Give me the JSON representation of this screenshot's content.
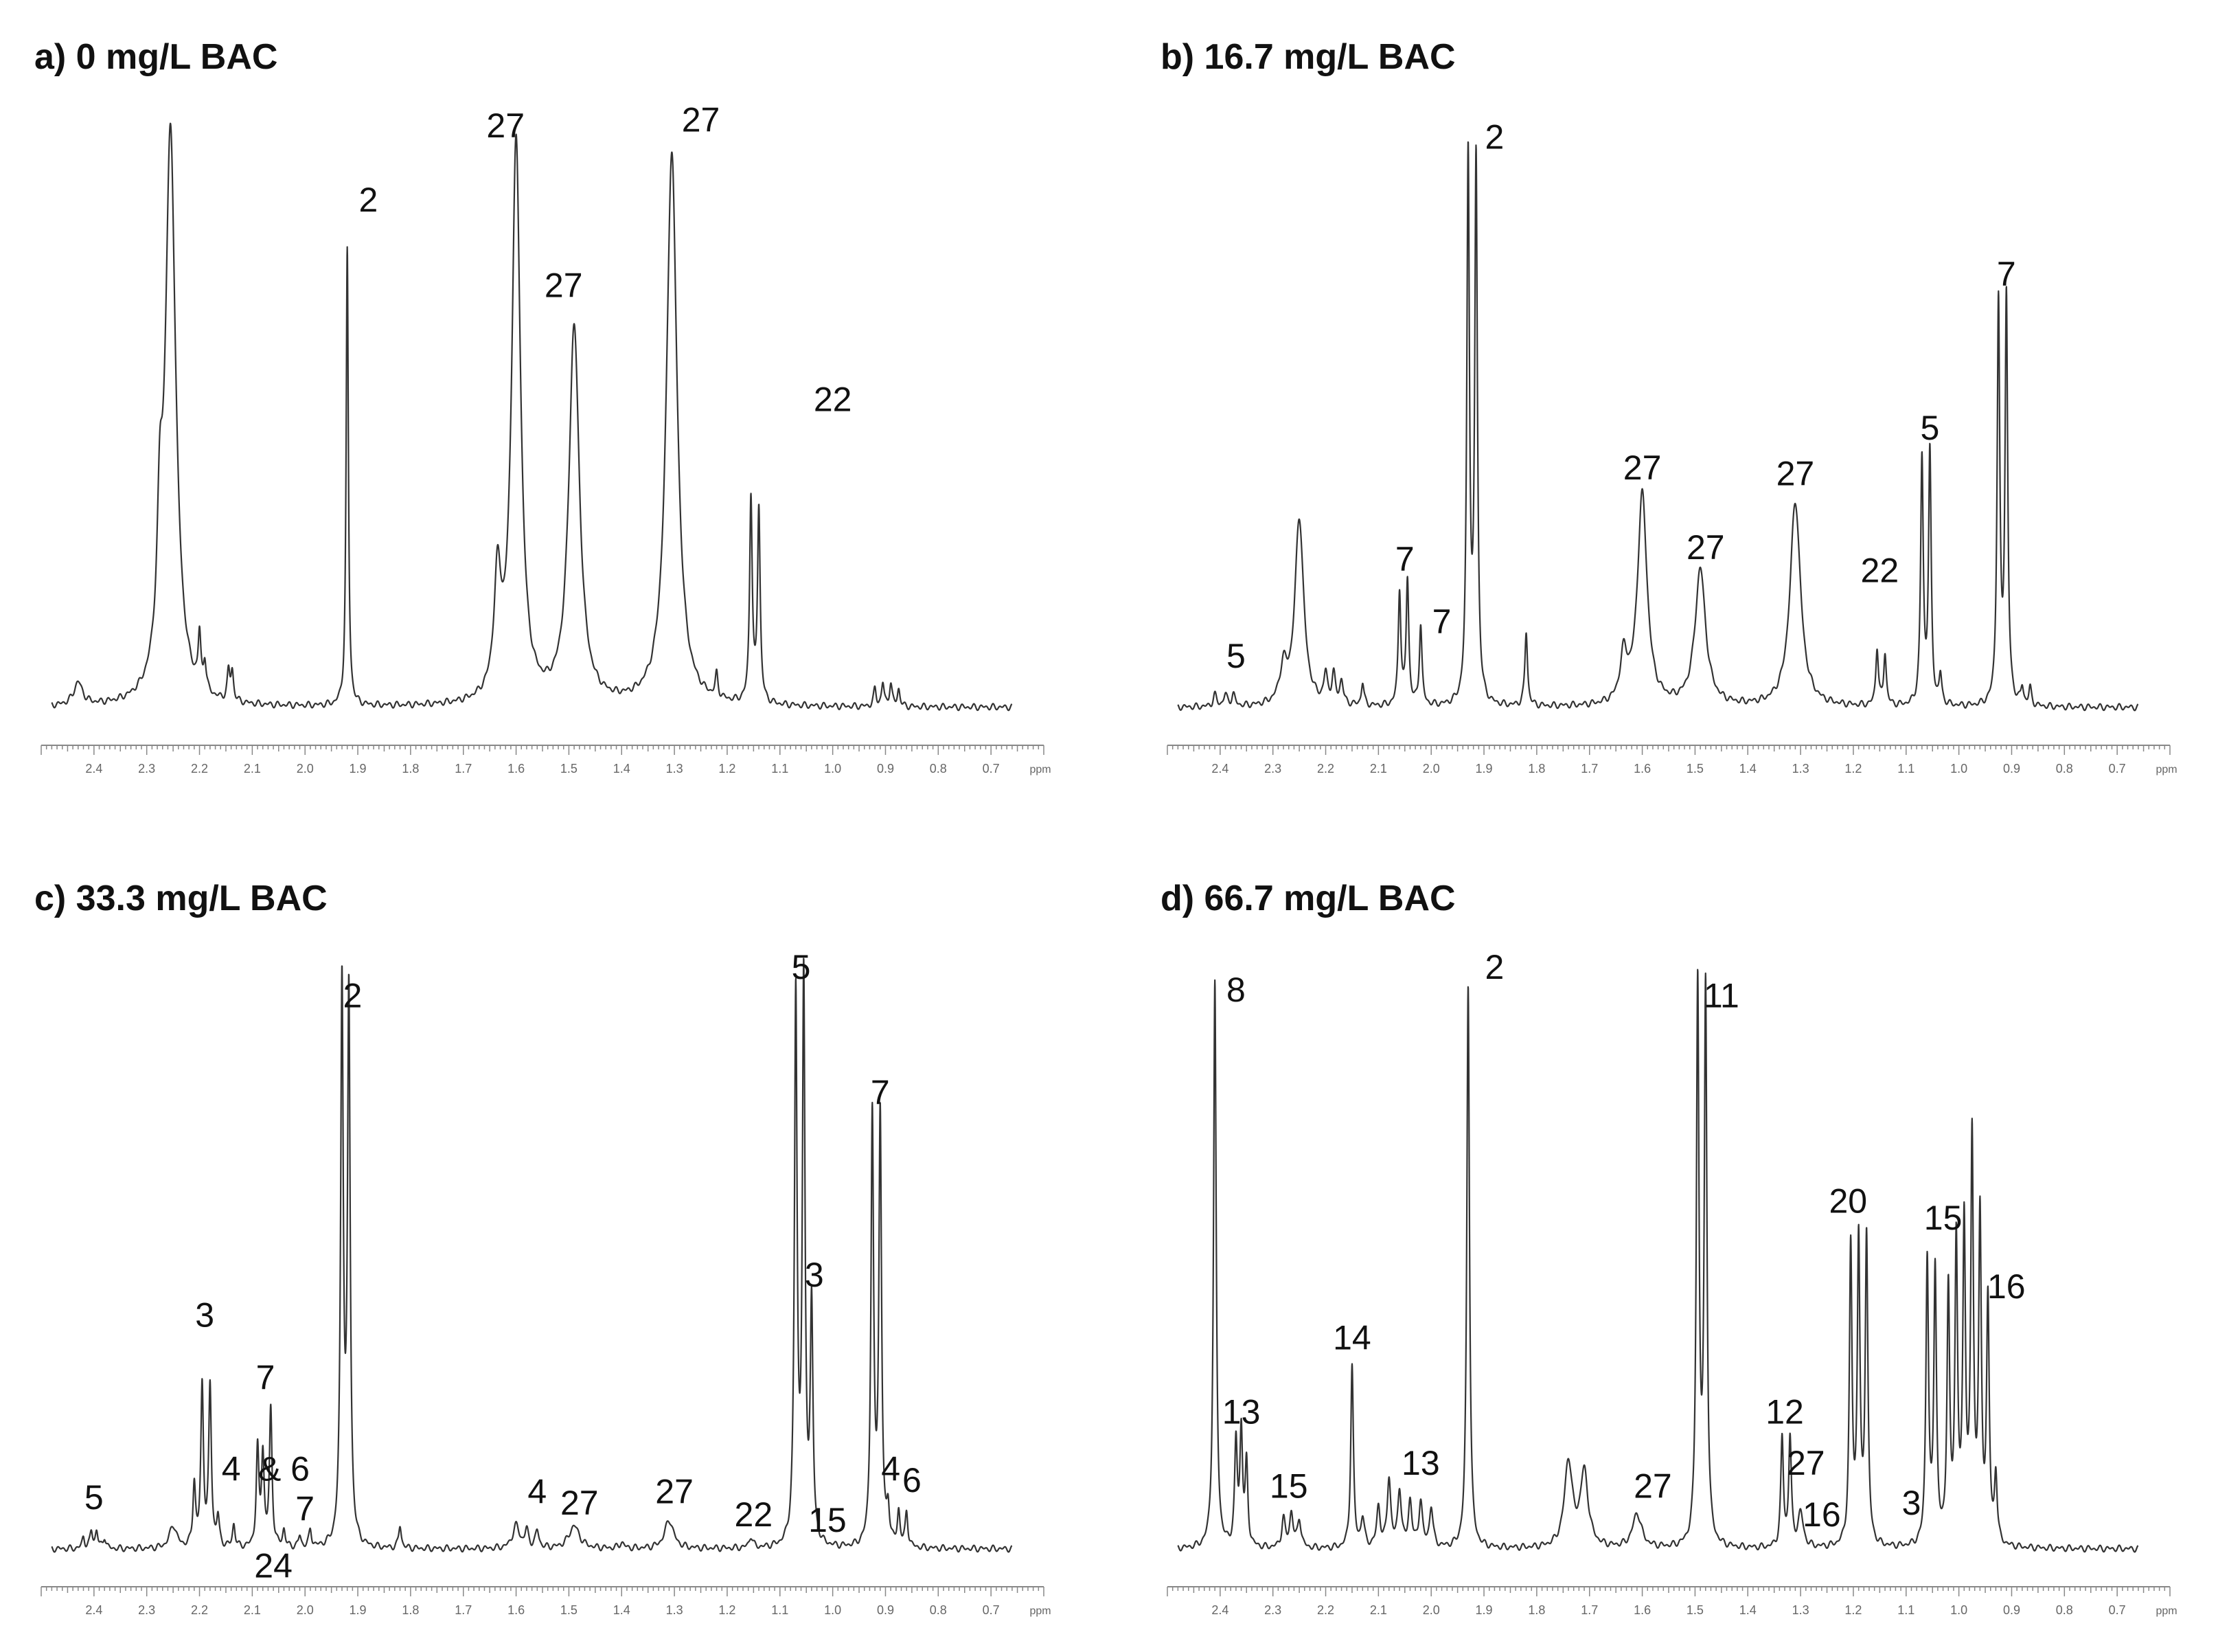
{
  "chart_data": [
    {
      "type": "line",
      "title": "a) 0 mg/L BAC",
      "xunit": "ppm",
      "xlim": [
        2.5,
        0.6
      ],
      "xticks": [
        "2.4",
        "2.3",
        "2.2",
        "2.1",
        "2.0",
        "1.9",
        "1.8",
        "1.7",
        "1.6",
        "1.5",
        "1.4",
        "1.3",
        "1.2",
        "1.1",
        "1.0",
        "0.9",
        "0.8",
        "0.7"
      ],
      "peaks": [
        {
          "x": 2.43,
          "y": 4,
          "w": 0.01
        },
        {
          "x": 2.275,
          "y": 22,
          "w": 0.006
        },
        {
          "x": 2.255,
          "y": 100,
          "w": 0.012
        },
        {
          "x": 2.2,
          "y": 9,
          "w": 0.003
        },
        {
          "x": 2.19,
          "y": 5,
          "w": 0.003
        },
        {
          "x": 2.145,
          "y": 5,
          "w": 0.003
        },
        {
          "x": 2.138,
          "y": 5,
          "w": 0.003
        },
        {
          "x": 1.92,
          "y": 80,
          "w": 0.0025
        },
        {
          "x": 1.635,
          "y": 20,
          "w": 0.008
        },
        {
          "x": 1.6,
          "y": 98,
          "w": 0.01
        },
        {
          "x": 1.49,
          "y": 66,
          "w": 0.012
        },
        {
          "x": 1.305,
          "y": 97,
          "w": 0.012
        },
        {
          "x": 1.22,
          "y": 4,
          "w": 0.003
        },
        {
          "x": 1.155,
          "y": 36,
          "w": 0.003
        },
        {
          "x": 1.14,
          "y": 34,
          "w": 0.003
        },
        {
          "x": 0.92,
          "y": 3,
          "w": 0.003
        },
        {
          "x": 0.905,
          "y": 4,
          "w": 0.003
        },
        {
          "x": 0.89,
          "y": 4,
          "w": 0.003
        },
        {
          "x": 0.875,
          "y": 3,
          "w": 0.003
        }
      ],
      "labels": [
        {
          "text": "2",
          "x": 1.88,
          "y": 87
        },
        {
          "text": "27",
          "x": 1.62,
          "y": 100
        },
        {
          "text": "27",
          "x": 1.51,
          "y": 72
        },
        {
          "text": "27",
          "x": 1.25,
          "y": 101
        },
        {
          "text": "22",
          "x": 1.0,
          "y": 52
        }
      ]
    },
    {
      "type": "line",
      "title": "b) 16.7 mg/L BAC",
      "xunit": "ppm",
      "xlim": [
        2.5,
        0.6
      ],
      "xticks": [
        "2.4",
        "2.3",
        "2.2",
        "2.1",
        "2.0",
        "1.9",
        "1.8",
        "1.7",
        "1.6",
        "1.5",
        "1.4",
        "1.3",
        "1.2",
        "1.1",
        "1.0",
        "0.9",
        "0.8",
        "0.7"
      ],
      "peaks": [
        {
          "x": 2.41,
          "y": 2,
          "w": 0.004
        },
        {
          "x": 2.39,
          "y": 2,
          "w": 0.004
        },
        {
          "x": 2.375,
          "y": 2,
          "w": 0.004
        },
        {
          "x": 2.28,
          "y": 6,
          "w": 0.008
        },
        {
          "x": 2.25,
          "y": 33,
          "w": 0.01
        },
        {
          "x": 2.2,
          "y": 5,
          "w": 0.004
        },
        {
          "x": 2.185,
          "y": 5,
          "w": 0.004
        },
        {
          "x": 2.17,
          "y": 4,
          "w": 0.004
        },
        {
          "x": 2.13,
          "y": 4,
          "w": 0.003
        },
        {
          "x": 2.06,
          "y": 20,
          "w": 0.003
        },
        {
          "x": 2.045,
          "y": 22,
          "w": 0.003
        },
        {
          "x": 2.02,
          "y": 14,
          "w": 0.003
        },
        {
          "x": 1.93,
          "y": 96,
          "w": 0.003
        },
        {
          "x": 1.915,
          "y": 95,
          "w": 0.003
        },
        {
          "x": 1.82,
          "y": 13,
          "w": 0.003
        },
        {
          "x": 1.635,
          "y": 8,
          "w": 0.008
        },
        {
          "x": 1.6,
          "y": 37,
          "w": 0.011
        },
        {
          "x": 1.49,
          "y": 24,
          "w": 0.012
        },
        {
          "x": 1.31,
          "y": 36,
          "w": 0.012
        },
        {
          "x": 1.155,
          "y": 10,
          "w": 0.003
        },
        {
          "x": 1.14,
          "y": 9,
          "w": 0.003
        },
        {
          "x": 1.07,
          "y": 43,
          "w": 0.003
        },
        {
          "x": 1.055,
          "y": 44,
          "w": 0.003
        },
        {
          "x": 1.035,
          "y": 5,
          "w": 0.003
        },
        {
          "x": 0.925,
          "y": 70,
          "w": 0.003
        },
        {
          "x": 0.91,
          "y": 71,
          "w": 0.003
        },
        {
          "x": 0.88,
          "y": 3,
          "w": 0.003
        },
        {
          "x": 0.865,
          "y": 3,
          "w": 0.003
        }
      ],
      "labels": [
        {
          "text": "5",
          "x": 2.37,
          "y": 7
        },
        {
          "text": "7",
          "x": 2.05,
          "y": 24
        },
        {
          "text": "7",
          "x": 1.98,
          "y": 13
        },
        {
          "text": "2",
          "x": 1.88,
          "y": 98
        },
        {
          "text": "27",
          "x": 1.6,
          "y": 40
        },
        {
          "text": "27",
          "x": 1.48,
          "y": 26
        },
        {
          "text": "27",
          "x": 1.31,
          "y": 39
        },
        {
          "text": "22",
          "x": 1.15,
          "y": 22
        },
        {
          "text": "5",
          "x": 1.055,
          "y": 47
        },
        {
          "text": "7",
          "x": 0.91,
          "y": 74
        }
      ]
    },
    {
      "type": "line",
      "title": "c) 33.3 mg/L BAC",
      "xunit": "ppm",
      "xlim": [
        2.5,
        0.6
      ],
      "xticks": [
        "2.4",
        "2.3",
        "2.2",
        "2.1",
        "2.0",
        "1.9",
        "1.8",
        "1.7",
        "1.6",
        "1.5",
        "1.4",
        "1.3",
        "1.2",
        "1.1",
        "1.0",
        "0.9",
        "0.8",
        "0.7"
      ],
      "peaks": [
        {
          "x": 2.42,
          "y": 2,
          "w": 0.003
        },
        {
          "x": 2.405,
          "y": 3,
          "w": 0.003
        },
        {
          "x": 2.395,
          "y": 3,
          "w": 0.003
        },
        {
          "x": 2.38,
          "y": 2,
          "w": 0.003
        },
        {
          "x": 2.25,
          "y": 4,
          "w": 0.008
        },
        {
          "x": 2.21,
          "y": 11,
          "w": 0.003
        },
        {
          "x": 2.195,
          "y": 28,
          "w": 0.003
        },
        {
          "x": 2.18,
          "y": 28,
          "w": 0.003
        },
        {
          "x": 2.165,
          "y": 5,
          "w": 0.003
        },
        {
          "x": 2.135,
          "y": 4,
          "w": 0.003
        },
        {
          "x": 2.09,
          "y": 17,
          "w": 0.003
        },
        {
          "x": 2.08,
          "y": 16,
          "w": 0.003
        },
        {
          "x": 2.065,
          "y": 24,
          "w": 0.003
        },
        {
          "x": 2.04,
          "y": 3,
          "w": 0.003
        },
        {
          "x": 2.01,
          "y": 2,
          "w": 0.003
        },
        {
          "x": 1.99,
          "y": 3,
          "w": 0.003
        },
        {
          "x": 1.93,
          "y": 98,
          "w": 0.003
        },
        {
          "x": 1.917,
          "y": 96,
          "w": 0.003
        },
        {
          "x": 1.82,
          "y": 4,
          "w": 0.003
        },
        {
          "x": 1.6,
          "y": 4,
          "w": 0.008
        },
        {
          "x": 1.58,
          "y": 3,
          "w": 0.004
        },
        {
          "x": 1.56,
          "y": 3,
          "w": 0.004
        },
        {
          "x": 1.49,
          "y": 4,
          "w": 0.012
        },
        {
          "x": 1.4,
          "y": 1,
          "w": 0.005
        },
        {
          "x": 1.31,
          "y": 5,
          "w": 0.01
        },
        {
          "x": 1.155,
          "y": 2,
          "w": 0.004
        },
        {
          "x": 1.07,
          "y": 96,
          "w": 0.003
        },
        {
          "x": 1.055,
          "y": 98,
          "w": 0.003
        },
        {
          "x": 1.04,
          "y": 41,
          "w": 0.003
        },
        {
          "x": 0.925,
          "y": 75,
          "w": 0.003
        },
        {
          "x": 0.91,
          "y": 75,
          "w": 0.003
        },
        {
          "x": 0.895,
          "y": 6,
          "w": 0.003
        },
        {
          "x": 0.875,
          "y": 6,
          "w": 0.003
        },
        {
          "x": 0.86,
          "y": 6,
          "w": 0.003
        }
      ],
      "labels": [
        {
          "text": "5",
          "x": 2.4,
          "y": 7
        },
        {
          "text": "3",
          "x": 2.19,
          "y": 39
        },
        {
          "text": "4",
          "x": 2.14,
          "y": 12
        },
        {
          "text": "7",
          "x": 2.075,
          "y": 28
        },
        {
          "text": "& 6",
          "x": 2.04,
          "y": 12
        },
        {
          "text": "7",
          "x": 2.0,
          "y": 5
        },
        {
          "text": "24",
          "x": 2.06,
          "y": -5
        },
        {
          "text": "2",
          "x": 1.91,
          "y": 95
        },
        {
          "text": "4",
          "x": 1.56,
          "y": 8
        },
        {
          "text": "27",
          "x": 1.48,
          "y": 6
        },
        {
          "text": "27",
          "x": 1.3,
          "y": 8
        },
        {
          "text": "22",
          "x": 1.15,
          "y": 4
        },
        {
          "text": "15",
          "x": 1.01,
          "y": 3
        },
        {
          "text": "5",
          "x": 1.06,
          "y": 100
        },
        {
          "text": "3",
          "x": 1.035,
          "y": 46
        },
        {
          "text": "7",
          "x": 0.91,
          "y": 78
        },
        {
          "text": "4",
          "x": 0.89,
          "y": 12
        },
        {
          "text": "6",
          "x": 0.85,
          "y": 10
        }
      ]
    },
    {
      "type": "line",
      "title": "d) 66.7 mg/L BAC",
      "xunit": "ppm",
      "xlim": [
        2.5,
        0.6
      ],
      "xticks": [
        "2.4",
        "2.3",
        "2.2",
        "2.1",
        "2.0",
        "1.9",
        "1.8",
        "1.7",
        "1.6",
        "1.5",
        "1.4",
        "1.3",
        "1.2",
        "1.1",
        "1.0",
        "0.9",
        "0.8",
        "0.7"
      ],
      "peaks": [
        {
          "x": 2.41,
          "y": 99,
          "w": 0.003
        },
        {
          "x": 2.37,
          "y": 18,
          "w": 0.003
        },
        {
          "x": 2.36,
          "y": 20,
          "w": 0.003
        },
        {
          "x": 2.35,
          "y": 14,
          "w": 0.003
        },
        {
          "x": 2.28,
          "y": 5,
          "w": 0.004
        },
        {
          "x": 2.265,
          "y": 6,
          "w": 0.004
        },
        {
          "x": 2.25,
          "y": 5,
          "w": 0.004
        },
        {
          "x": 2.15,
          "y": 32,
          "w": 0.003
        },
        {
          "x": 2.13,
          "y": 5,
          "w": 0.004
        },
        {
          "x": 2.1,
          "y": 7,
          "w": 0.004
        },
        {
          "x": 2.08,
          "y": 12,
          "w": 0.004
        },
        {
          "x": 2.06,
          "y": 10,
          "w": 0.004
        },
        {
          "x": 2.04,
          "y": 8,
          "w": 0.004
        },
        {
          "x": 2.02,
          "y": 8,
          "w": 0.004
        },
        {
          "x": 2.0,
          "y": 7,
          "w": 0.004
        },
        {
          "x": 1.93,
          "y": 99,
          "w": 0.003
        },
        {
          "x": 1.74,
          "y": 15,
          "w": 0.009
        },
        {
          "x": 1.71,
          "y": 13,
          "w": 0.009
        },
        {
          "x": 1.61,
          "y": 6,
          "w": 0.01
        },
        {
          "x": 1.495,
          "y": 98,
          "w": 0.003
        },
        {
          "x": 1.48,
          "y": 97,
          "w": 0.003
        },
        {
          "x": 1.335,
          "y": 19,
          "w": 0.003
        },
        {
          "x": 1.32,
          "y": 19,
          "w": 0.003
        },
        {
          "x": 1.3,
          "y": 6,
          "w": 0.006
        },
        {
          "x": 1.205,
          "y": 52,
          "w": 0.003
        },
        {
          "x": 1.19,
          "y": 53,
          "w": 0.003
        },
        {
          "x": 1.175,
          "y": 54,
          "w": 0.003
        },
        {
          "x": 1.06,
          "y": 50,
          "w": 0.003
        },
        {
          "x": 1.045,
          "y": 48,
          "w": 0.003
        },
        {
          "x": 1.02,
          "y": 44,
          "w": 0.003
        },
        {
          "x": 1.005,
          "y": 52,
          "w": 0.003
        },
        {
          "x": 0.99,
          "y": 55,
          "w": 0.003
        },
        {
          "x": 0.975,
          "y": 70,
          "w": 0.003
        },
        {
          "x": 0.96,
          "y": 56,
          "w": 0.003
        },
        {
          "x": 0.945,
          "y": 42,
          "w": 0.003
        },
        {
          "x": 0.93,
          "y": 12,
          "w": 0.003
        }
      ],
      "labels": [
        {
          "text": "8",
          "x": 2.37,
          "y": 96
        },
        {
          "text": "13",
          "x": 2.36,
          "y": 22
        },
        {
          "text": "15",
          "x": 2.27,
          "y": 9
        },
        {
          "text": "14",
          "x": 2.15,
          "y": 35
        },
        {
          "text": "13",
          "x": 2.02,
          "y": 13
        },
        {
          "text": "2",
          "x": 1.88,
          "y": 100
        },
        {
          "text": "27",
          "x": 1.58,
          "y": 9
        },
        {
          "text": "11",
          "x": 1.45,
          "y": 95
        },
        {
          "text": "12",
          "x": 1.33,
          "y": 22
        },
        {
          "text": "27",
          "x": 1.29,
          "y": 13
        },
        {
          "text": "16",
          "x": 1.26,
          "y": 4
        },
        {
          "text": "20",
          "x": 1.21,
          "y": 59
        },
        {
          "text": "3",
          "x": 1.09,
          "y": 6
        },
        {
          "text": "15",
          "x": 1.03,
          "y": 56
        },
        {
          "text": "16",
          "x": 0.91,
          "y": 44
        }
      ]
    }
  ]
}
